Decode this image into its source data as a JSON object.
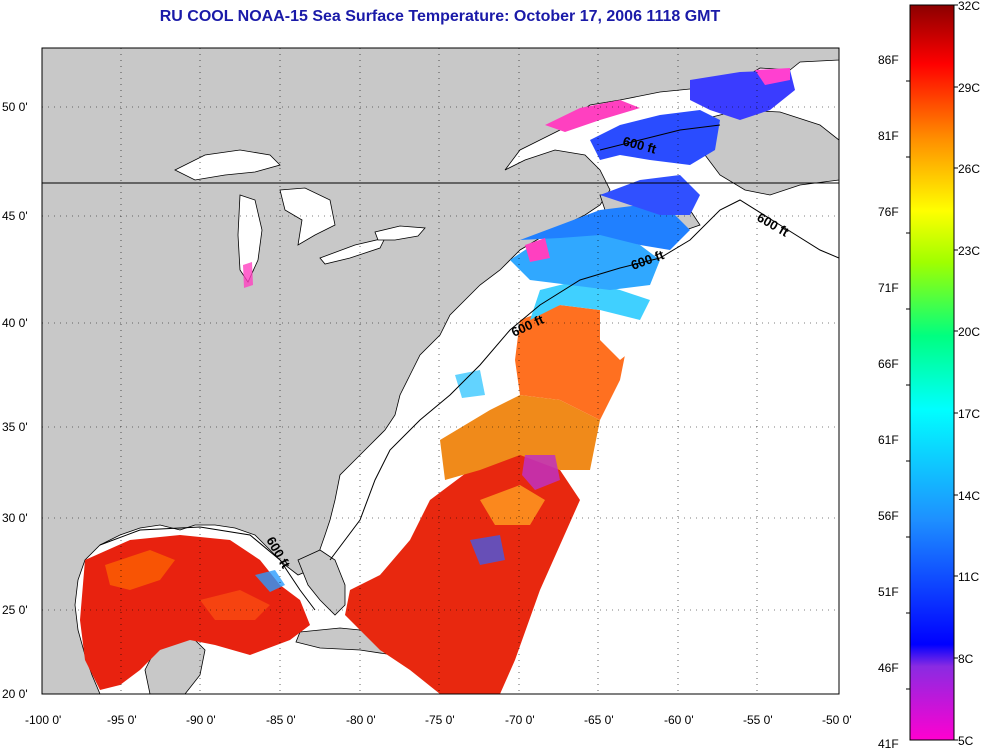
{
  "title": "RU COOL  NOAA-15  Sea Surface Temperature:  October 17, 2006 1118 GMT",
  "lon_labels": [
    "-100 0'",
    "-95 0'",
    "-90 0'",
    "-85 0'",
    "-80 0'",
    "-75 0'",
    "-70 0'",
    "-65 0'",
    "-60 0'",
    "-55 0'",
    "-50 0'"
  ],
  "lat_labels": [
    "50 0'",
    "45 0'",
    "40 0'",
    "35 0'",
    "30 0'",
    "25 0'",
    "20 0'"
  ],
  "contour_labels": [
    "600 ft",
    "600 ft",
    "600 ft",
    "600 ft",
    "600 ft"
  ],
  "colorbar": {
    "celsius": [
      "32C",
      "29C",
      "26C",
      "23C",
      "20C",
      "17C",
      "14C",
      "11C",
      "8C",
      "5C"
    ],
    "fahrenheit": [
      "86F",
      "81F",
      "76F",
      "71F",
      "66F",
      "61F",
      "56F",
      "51F",
      "46F",
      "41F"
    ]
  },
  "colors": {
    "title": "#1a1aa8",
    "land": "#c8c8c8",
    "ocean_nodata": "#ffffff"
  }
}
